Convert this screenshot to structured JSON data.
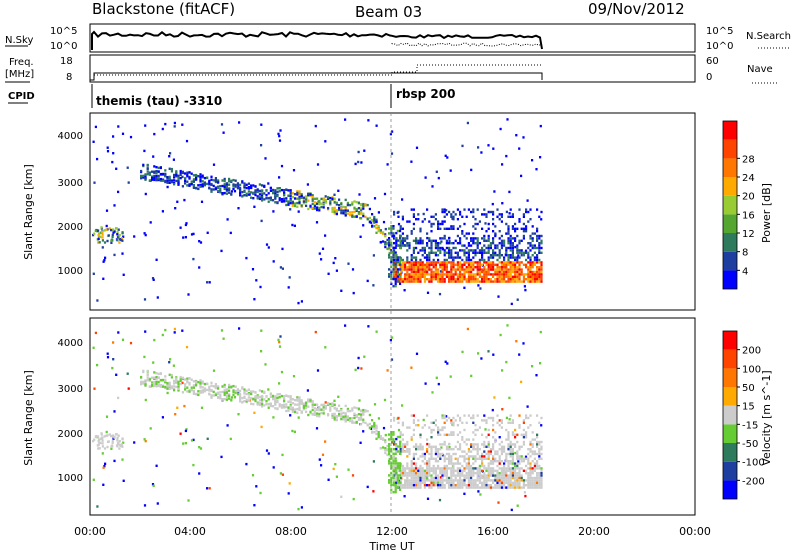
{
  "header": {
    "station": "Blackstone (fitACF)",
    "beam": "Beam 03",
    "date": "09/Nov/2012"
  },
  "left_labels": {
    "nsky": "N.Sky",
    "freq_line1": "Freq.",
    "freq_line2": "[MHz]",
    "cpid": "CPID"
  },
  "right_labels": {
    "nsearch": "N.Search",
    "nave": "Nave"
  },
  "panel_ticks": {
    "noise_top": "10^5",
    "noise_bottom": "10^0",
    "freq_top": "18",
    "freq_bottom": "8",
    "nave_top": "60",
    "nave_bottom": "0"
  },
  "cpid_labels": [
    "themis (tau) -3310",
    "rbsp 200"
  ],
  "colors": {
    "power_scale": [
      "#0000ff",
      "#1e3fa0",
      "#2e7a5c",
      "#55a630",
      "#99cc33",
      "#ffaa00",
      "#ff7700",
      "#ff4400",
      "#ff0000"
    ],
    "velocity_scale": [
      "#0000ff",
      "#1e3fa0",
      "#2e7a5c",
      "#66cc33",
      "#cccccc",
      "#ffaa00",
      "#ff7700",
      "#ff4400",
      "#ff0000"
    ]
  },
  "chart_data": [
    {
      "type": "line",
      "name": "noise",
      "ylabels": [
        "N.Sky",
        "N.Search"
      ],
      "yscale": "log",
      "ylim": [
        1,
        100000
      ],
      "x_range": [
        "00:00",
        "18:00"
      ]
    },
    {
      "type": "line",
      "name": "frequency_nave",
      "ylabels": [
        "Freq. [MHz]",
        "Nave"
      ],
      "freq_ylim": [
        8,
        18
      ],
      "nave_ylim": [
        0,
        60
      ],
      "cpid_segments": [
        {
          "start": "00:00",
          "end": "12:00",
          "label": "themis (tau) -3310"
        },
        {
          "start": "12:00",
          "end": "18:00",
          "label": "rbsp 200"
        }
      ]
    },
    {
      "type": "heatmap",
      "name": "power",
      "ylabel": "Slant Range [km]",
      "yticks": [
        "1000",
        "2000",
        "3000",
        "4000"
      ],
      "ylim": [
        200,
        4500
      ],
      "colorbar_label": "Power [dB]",
      "colorbar_ticks": [
        "4",
        "8",
        "12",
        "16",
        "20",
        "24",
        "28"
      ]
    },
    {
      "type": "heatmap",
      "name": "velocity",
      "ylabel": "Slant Range [km]",
      "yticks": [
        "1000",
        "2000",
        "3000",
        "4000"
      ],
      "ylim": [
        200,
        4500
      ],
      "colorbar_label": "Velocity [m s^-1]",
      "colorbar_ticks": [
        "200",
        "100",
        "50",
        "15",
        "-15",
        "-50",
        "-100",
        "-200"
      ]
    }
  ],
  "xaxis": {
    "label": "Time UT",
    "ticks": [
      "00:00",
      "04:00",
      "08:00",
      "12:00",
      "16:00",
      "20:00",
      "00:00"
    ]
  }
}
